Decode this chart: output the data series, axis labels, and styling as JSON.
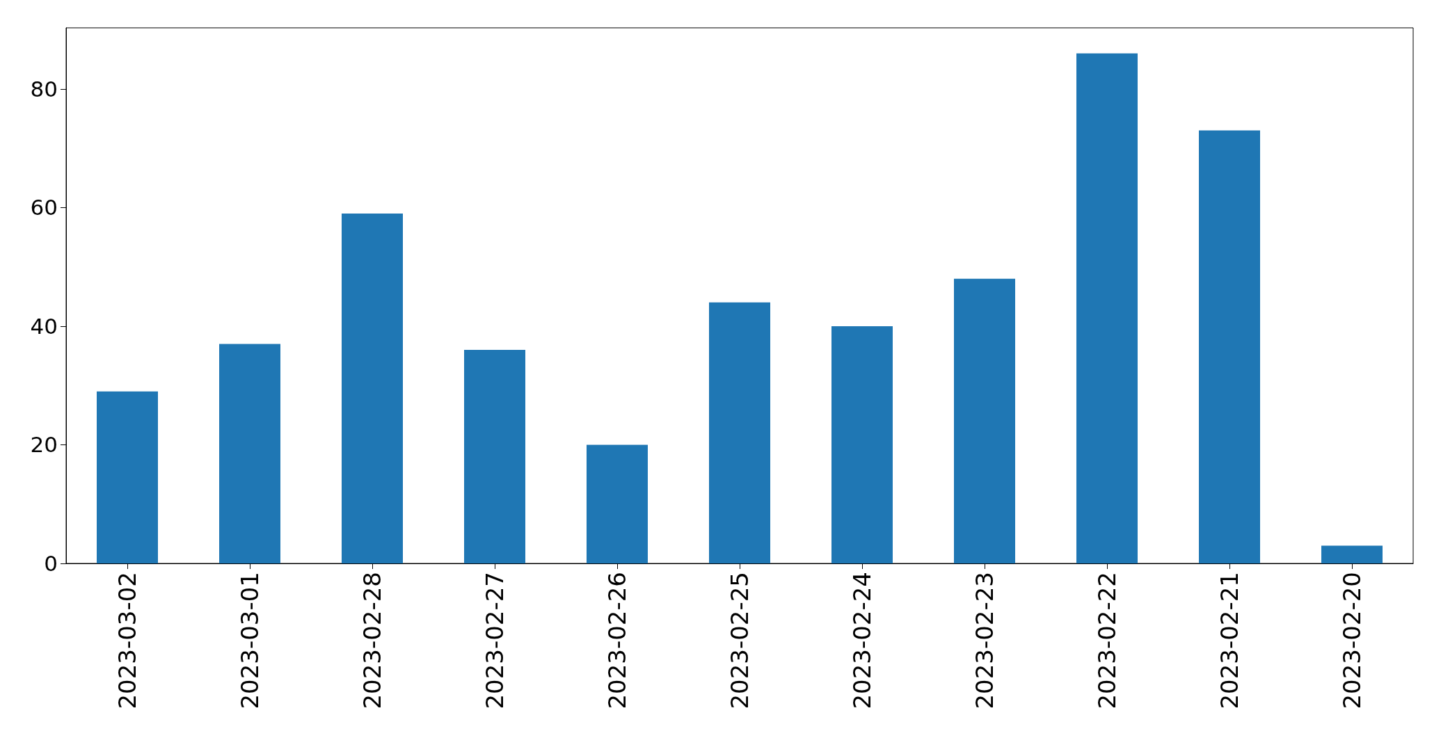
{
  "chart_data": {
    "type": "bar",
    "categories": [
      "2023-03-02",
      "2023-03-01",
      "2023-02-28",
      "2023-02-27",
      "2023-02-26",
      "2023-02-25",
      "2023-02-24",
      "2023-02-23",
      "2023-02-22",
      "2023-02-21",
      "2023-02-20"
    ],
    "values": [
      29,
      37,
      59,
      36,
      20,
      44,
      40,
      48,
      86,
      73,
      3
    ],
    "color": "#1f77b4",
    "ylim": [
      0,
      90.3
    ],
    "yticks": [
      0,
      20,
      40,
      60,
      80
    ],
    "grid": false
  }
}
